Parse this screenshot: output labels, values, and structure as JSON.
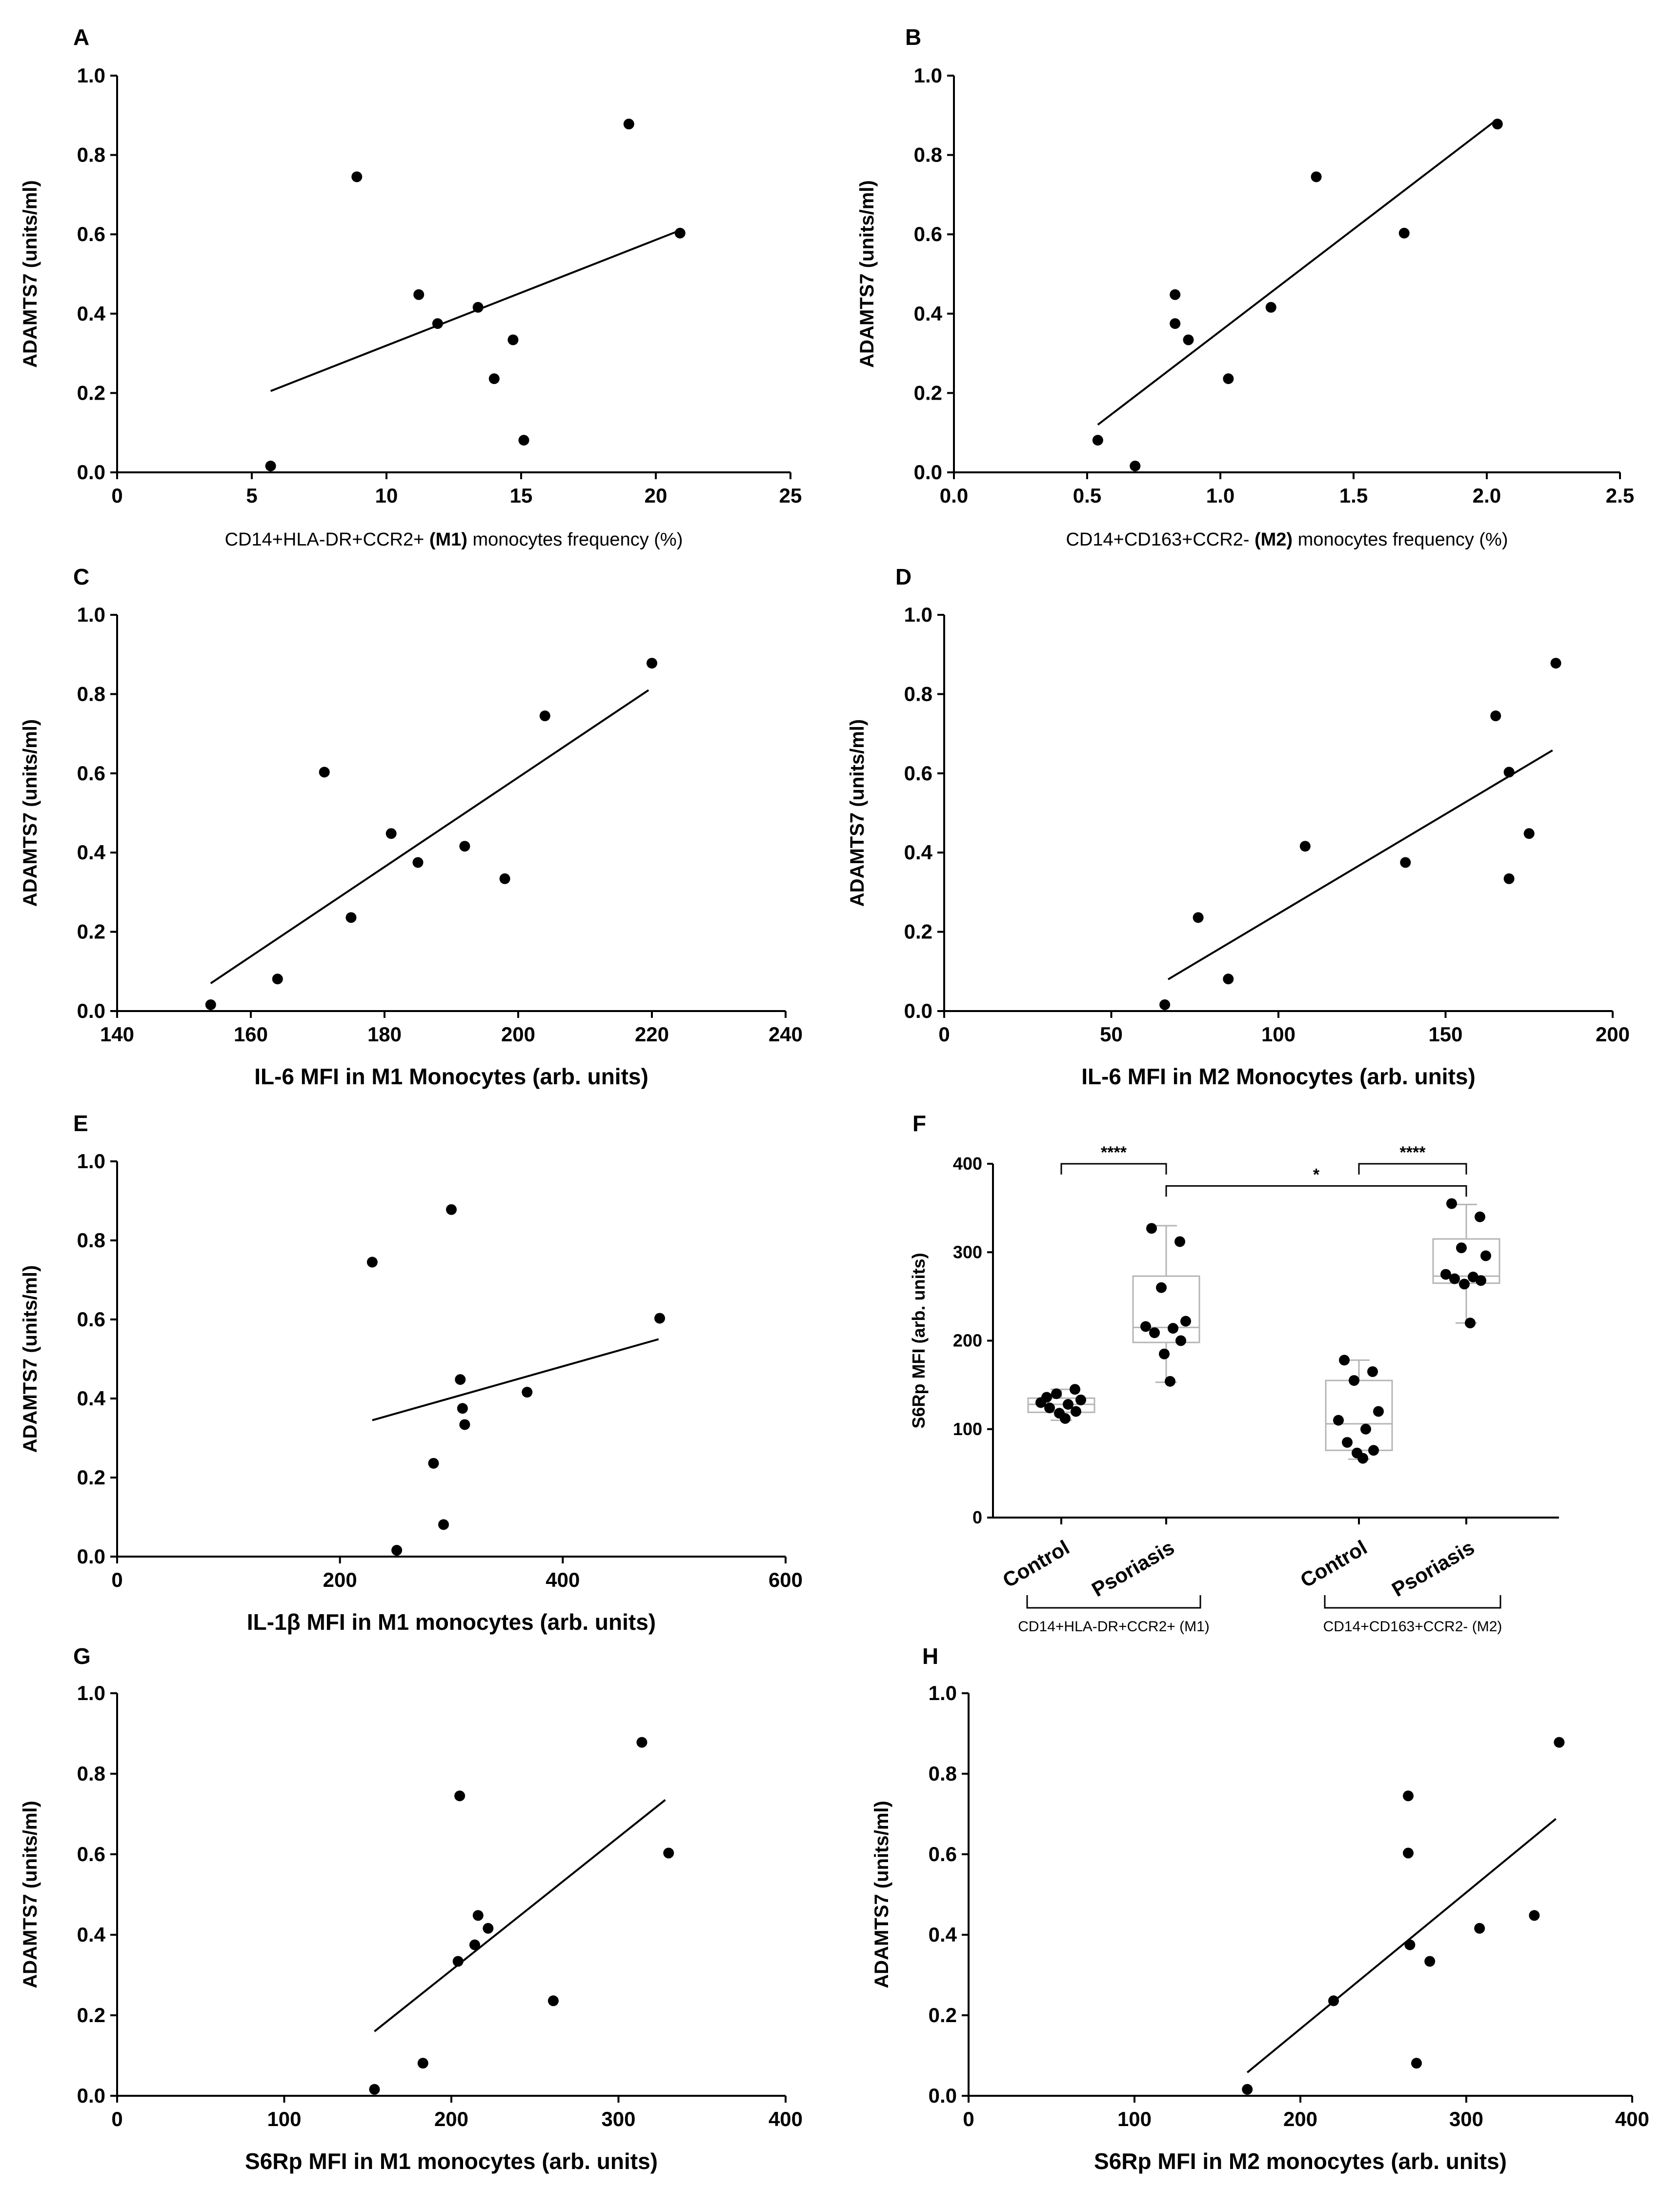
{
  "figure": {
    "y_title": "ADAMTS7 (units/ml)"
  },
  "chart_data": [
    {
      "id": "A",
      "panel_label": "A",
      "type": "scatter",
      "title": "",
      "xlabel_parts": [
        [
          "CD14+HLA-DR+CCR2+ ",
          false
        ],
        [
          "(M1)",
          true
        ],
        [
          " monocytes frequency (%)",
          false
        ]
      ],
      "xlabel_style": "regular",
      "ylabel": "ADAMTS7 (units/ml)",
      "xlim": [
        0,
        25
      ],
      "xticks": [
        0,
        5,
        10,
        15,
        20,
        25
      ],
      "xtick_labels": [
        "0",
        "5",
        "10",
        "15",
        "20",
        "25"
      ],
      "ylim": [
        0,
        1.0
      ],
      "yticks": [
        0,
        0.2,
        0.4,
        0.6,
        0.8,
        1.0
      ],
      "ytick_labels": [
        "0.0",
        "0.2",
        "0.4",
        "0.6",
        "0.8",
        "1.0"
      ],
      "points": [
        [
          5.7,
          0.016
        ],
        [
          8.9,
          0.745
        ],
        [
          11.2,
          0.448
        ],
        [
          11.9,
          0.375
        ],
        [
          13.4,
          0.416
        ],
        [
          14.0,
          0.236
        ],
        [
          14.7,
          0.334
        ],
        [
          15.1,
          0.081
        ],
        [
          19.0,
          0.878
        ],
        [
          20.9,
          0.603
        ]
      ],
      "fit": [
        [
          5.7,
          0.205
        ],
        [
          20.9,
          0.61
        ]
      ]
    },
    {
      "id": "B",
      "panel_label": "B",
      "type": "scatter",
      "title": "",
      "xlabel_parts": [
        [
          "CD14+CD163+CCR2- ",
          false
        ],
        [
          "(M2)",
          true
        ],
        [
          " monocytes frequency (%)",
          false
        ]
      ],
      "xlabel_style": "regular",
      "ylabel": "ADAMTS7 (units/ml)",
      "xlim": [
        0,
        2.5
      ],
      "xticks": [
        0,
        0.5,
        1.0,
        1.5,
        2.0,
        2.5
      ],
      "xtick_labels": [
        "0.0",
        "0.5",
        "1.0",
        "1.5",
        "2.0",
        "2.5"
      ],
      "ylim": [
        0,
        1.0
      ],
      "yticks": [
        0,
        0.2,
        0.4,
        0.6,
        0.8,
        1.0
      ],
      "ytick_labels": [
        "0.0",
        "0.2",
        "0.4",
        "0.6",
        "0.8",
        "1.0"
      ],
      "points": [
        [
          0.54,
          0.081
        ],
        [
          0.68,
          0.016
        ],
        [
          0.83,
          0.448
        ],
        [
          0.83,
          0.375
        ],
        [
          0.88,
          0.334
        ],
        [
          1.03,
          0.236
        ],
        [
          1.19,
          0.416
        ],
        [
          1.36,
          0.745
        ],
        [
          1.69,
          0.603
        ],
        [
          2.04,
          0.878
        ]
      ],
      "fit": [
        [
          0.54,
          0.12
        ],
        [
          2.03,
          0.885
        ]
      ]
    },
    {
      "id": "C",
      "panel_label": "C",
      "type": "scatter",
      "title": "",
      "xlabel_parts": [
        [
          "IL-6 MFI in M1 Monocytes (arb. units)",
          true
        ]
      ],
      "xlabel_style": "bold",
      "ylabel": "ADAMTS7 (units/ml)",
      "xlim": [
        140,
        240
      ],
      "xticks": [
        140,
        160,
        180,
        200,
        220,
        240
      ],
      "xtick_labels": [
        "140",
        "160",
        "180",
        "200",
        "220",
        "240"
      ],
      "ylim": [
        0,
        1.0
      ],
      "yticks": [
        0,
        0.2,
        0.4,
        0.6,
        0.8,
        1.0
      ],
      "ytick_labels": [
        "0.0",
        "0.2",
        "0.4",
        "0.6",
        "0.8",
        "1.0"
      ],
      "points": [
        [
          154,
          0.016
        ],
        [
          164,
          0.081
        ],
        [
          171,
          0.603
        ],
        [
          175,
          0.236
        ],
        [
          181,
          0.448
        ],
        [
          185,
          0.375
        ],
        [
          192,
          0.416
        ],
        [
          198,
          0.334
        ],
        [
          204,
          0.745
        ],
        [
          220,
          0.878
        ]
      ],
      "fit": [
        [
          154,
          0.07
        ],
        [
          219.5,
          0.81
        ]
      ]
    },
    {
      "id": "D",
      "panel_label": "D",
      "type": "scatter",
      "title": "",
      "xlabel_parts": [
        [
          "IL-6 MFI in M2 Monocytes (arb. units)",
          true
        ]
      ],
      "xlabel_style": "bold",
      "ylabel": "ADAMTS7 (units/ml)",
      "xlim": [
        0,
        200
      ],
      "xticks": [
        0,
        50,
        100,
        150,
        200
      ],
      "xtick_labels": [
        "0",
        "50",
        "100",
        "150",
        "200"
      ],
      "ylim": [
        0,
        1.0
      ],
      "yticks": [
        0,
        0.2,
        0.4,
        0.6,
        0.8,
        1.0
      ],
      "ytick_labels": [
        "0.0",
        "0.2",
        "0.4",
        "0.6",
        "0.8",
        "1.0"
      ],
      "points": [
        [
          66,
          0.016
        ],
        [
          76,
          0.236
        ],
        [
          85,
          0.081
        ],
        [
          108,
          0.416
        ],
        [
          138,
          0.375
        ],
        [
          165,
          0.745
        ],
        [
          169,
          0.603
        ],
        [
          169,
          0.334
        ],
        [
          175,
          0.448
        ],
        [
          183,
          0.878
        ]
      ],
      "fit": [
        [
          67,
          0.08
        ],
        [
          182,
          0.658
        ]
      ]
    },
    {
      "id": "E",
      "panel_label": "E",
      "type": "scatter",
      "title": "",
      "xlabel_parts": [
        [
          "IL-1β MFI in M1 monocytes (arb. units)",
          true
        ]
      ],
      "xlabel_style": "bold",
      "ylabel": "ADAMTS7 (units/ml)",
      "xlim": [
        0,
        600
      ],
      "xticks": [
        0,
        200,
        400,
        600
      ],
      "xtick_labels": [
        "0",
        "200",
        "400",
        "600"
      ],
      "ylim": [
        0,
        1.0
      ],
      "yticks": [
        0,
        0.2,
        0.4,
        0.6,
        0.8,
        1.0
      ],
      "ytick_labels": [
        "0.0",
        "0.2",
        "0.4",
        "0.6",
        "0.8",
        "1.0"
      ],
      "points": [
        [
          229,
          0.745
        ],
        [
          251,
          0.016
        ],
        [
          284,
          0.236
        ],
        [
          293,
          0.081
        ],
        [
          300,
          0.878
        ],
        [
          308,
          0.448
        ],
        [
          310,
          0.375
        ],
        [
          312,
          0.334
        ],
        [
          368,
          0.416
        ],
        [
          487,
          0.603
        ]
      ],
      "fit": [
        [
          229,
          0.345
        ],
        [
          486,
          0.55
        ]
      ]
    },
    {
      "id": "F",
      "panel_label": "F",
      "type": "box",
      "ylabel": "S6Rp MFI (arb. units)",
      "ylim": [
        0,
        400
      ],
      "yticks": [
        0,
        100,
        200,
        300,
        400
      ],
      "ytick_labels": [
        "0",
        "100",
        "200",
        "300",
        "400"
      ],
      "categories": [
        "Control",
        "Psoriasis",
        "Control",
        "Psoriasis"
      ],
      "group_labels": [
        "CD14+HLA-DR+CCR2+ (M1)",
        "CD14+CD163+CCR2- (M2)"
      ],
      "boxes": [
        {
          "q1": 119,
          "median": 128,
          "q3": 135,
          "min": 110,
          "max": 145
        },
        {
          "q1": 198,
          "median": 215,
          "q3": 273,
          "min": 153,
          "max": 330
        },
        {
          "q1": 76,
          "median": 106,
          "q3": 155,
          "min": 66,
          "max": 178
        },
        {
          "q1": 265,
          "median": 273,
          "q3": 315,
          "min": 220,
          "max": 354
        }
      ],
      "points": [
        [
          136,
          145,
          140,
          133,
          130,
          128,
          124,
          120,
          118,
          112
        ],
        [
          327,
          312,
          260,
          222,
          216,
          214,
          209,
          200,
          185,
          154
        ],
        [
          178,
          165,
          155,
          120,
          110,
          100,
          85,
          76,
          73,
          67
        ],
        [
          355,
          340,
          305,
          296,
          275,
          272,
          270,
          268,
          264,
          220
        ]
      ],
      "significance": [
        {
          "from": 0,
          "to": 1,
          "level": 400,
          "label": "****"
        },
        {
          "from": 2,
          "to": 3,
          "level": 400,
          "label": "****"
        },
        {
          "from": 1,
          "to": 3,
          "level": 375,
          "label": "*"
        }
      ]
    },
    {
      "id": "G",
      "panel_label": "G",
      "type": "scatter",
      "title": "",
      "xlabel_parts": [
        [
          "S6Rp MFI in M1 monocytes (arb. units)",
          true
        ]
      ],
      "xlabel_style": "bold",
      "ylabel": "ADAMTS7 (units/ml)",
      "xlim": [
        0,
        400
      ],
      "xticks": [
        0,
        100,
        200,
        300,
        400
      ],
      "xtick_labels": [
        "0",
        "100",
        "200",
        "300",
        "400"
      ],
      "ylim": [
        0,
        1.0
      ],
      "yticks": [
        0,
        0.2,
        0.4,
        0.6,
        0.8,
        1.0
      ],
      "ytick_labels": [
        "0.0",
        "0.2",
        "0.4",
        "0.6",
        "0.8",
        "1.0"
      ],
      "points": [
        [
          154,
          0.016
        ],
        [
          183,
          0.081
        ],
        [
          204,
          0.334
        ],
        [
          205,
          0.745
        ],
        [
          214,
          0.375
        ],
        [
          216,
          0.448
        ],
        [
          222,
          0.416
        ],
        [
          261,
          0.236
        ],
        [
          314,
          0.878
        ],
        [
          330,
          0.603
        ]
      ],
      "fit": [
        [
          154,
          0.16
        ],
        [
          328,
          0.735
        ]
      ]
    },
    {
      "id": "H",
      "panel_label": "H",
      "type": "scatter",
      "title": "",
      "xlabel_parts": [
        [
          "S6Rp MFI in M2 monocytes (arb. units)",
          true
        ]
      ],
      "xlabel_style": "bold",
      "ylabel": "ADAMTS7 (units/ml)",
      "xlim": [
        0,
        400
      ],
      "xticks": [
        0,
        100,
        200,
        300,
        400
      ],
      "xtick_labels": [
        "0",
        "100",
        "200",
        "300",
        "400"
      ],
      "ylim": [
        0,
        1.0
      ],
      "yticks": [
        0,
        0.2,
        0.4,
        0.6,
        0.8,
        1.0
      ],
      "ytick_labels": [
        "0.0",
        "0.2",
        "0.4",
        "0.6",
        "0.8",
        "1.0"
      ],
      "points": [
        [
          168,
          0.016
        ],
        [
          220,
          0.236
        ],
        [
          265,
          0.745
        ],
        [
          265,
          0.603
        ],
        [
          266,
          0.375
        ],
        [
          270,
          0.081
        ],
        [
          278,
          0.334
        ],
        [
          308,
          0.416
        ],
        [
          341,
          0.448
        ],
        [
          356,
          0.878
        ]
      ],
      "fit": [
        [
          168,
          0.058
        ],
        [
          354,
          0.688
        ]
      ]
    }
  ]
}
